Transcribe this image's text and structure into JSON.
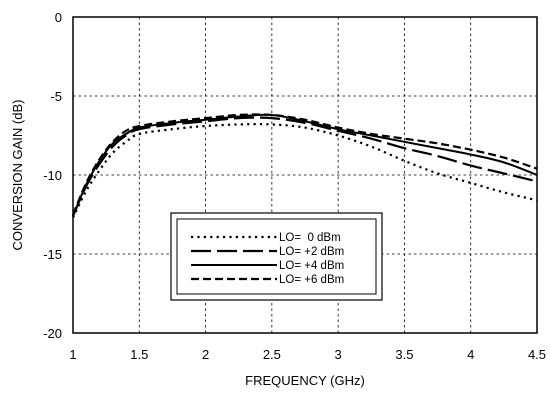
{
  "chart_data": {
    "type": "line",
    "title": "",
    "xlabel": "FREQUENCY (GHz)",
    "ylabel": "CONVERSION GAIN (dB)",
    "xlim": [
      1,
      4.5
    ],
    "ylim": [
      -20,
      0
    ],
    "xticks": [
      1,
      1.5,
      2,
      2.5,
      3,
      3.5,
      4,
      4.5
    ],
    "xtick_labels": [
      "1",
      "1.5",
      "2",
      "2.5",
      "3",
      "3.5",
      "4",
      "4.5"
    ],
    "yticks": [
      -20,
      -15,
      -10,
      -5,
      0
    ],
    "ytick_labels": [
      "-20",
      "-15",
      "-10",
      "-5",
      "0"
    ],
    "grid": true,
    "legend_position": "center-bottom",
    "series": [
      {
        "name": "LO=  0 dBm",
        "style": "dotted",
        "x": [
          1.0,
          1.1,
          1.2,
          1.3,
          1.4,
          1.5,
          1.75,
          2.0,
          2.25,
          2.5,
          2.75,
          3.0,
          3.25,
          3.5,
          3.75,
          4.0,
          4.25,
          4.5
        ],
        "y": [
          -12.7,
          -11.0,
          -9.7,
          -8.6,
          -7.9,
          -7.4,
          -7.1,
          -6.9,
          -6.8,
          -6.8,
          -7.0,
          -7.5,
          -8.2,
          -9.1,
          -9.9,
          -10.5,
          -11.1,
          -11.6
        ]
      },
      {
        "name": "LO= +2 dBm",
        "style": "long-dash",
        "x": [
          1.0,
          1.1,
          1.2,
          1.3,
          1.4,
          1.5,
          1.75,
          2.0,
          2.25,
          2.5,
          2.75,
          3.0,
          3.25,
          3.5,
          3.75,
          4.0,
          4.25,
          4.5
        ],
        "y": [
          -12.6,
          -10.7,
          -9.3,
          -8.2,
          -7.5,
          -7.1,
          -6.8,
          -6.6,
          -6.4,
          -6.4,
          -6.7,
          -7.2,
          -7.7,
          -8.3,
          -8.8,
          -9.4,
          -9.9,
          -10.4
        ]
      },
      {
        "name": "LO= +4 dBm",
        "style": "solid",
        "x": [
          1.0,
          1.1,
          1.2,
          1.3,
          1.4,
          1.5,
          1.75,
          2.0,
          2.25,
          2.5,
          2.75,
          3.0,
          3.25,
          3.5,
          3.75,
          4.0,
          4.25,
          4.5
        ],
        "y": [
          -12.6,
          -10.6,
          -9.1,
          -8.0,
          -7.4,
          -7.0,
          -6.7,
          -6.5,
          -6.3,
          -6.2,
          -6.6,
          -7.1,
          -7.5,
          -7.9,
          -8.3,
          -8.7,
          -9.2,
          -10.0
        ]
      },
      {
        "name": "LO= +6 dBm",
        "style": "dashed",
        "x": [
          1.0,
          1.1,
          1.2,
          1.3,
          1.4,
          1.5,
          1.75,
          2.0,
          2.25,
          2.5,
          2.75,
          3.0,
          3.25,
          3.5,
          3.75,
          4.0,
          4.25,
          4.5
        ],
        "y": [
          -12.5,
          -10.5,
          -9.0,
          -7.9,
          -7.2,
          -6.9,
          -6.6,
          -6.4,
          -6.2,
          -6.2,
          -6.5,
          -7.0,
          -7.4,
          -7.7,
          -8.0,
          -8.4,
          -8.9,
          -9.6
        ]
      }
    ]
  }
}
